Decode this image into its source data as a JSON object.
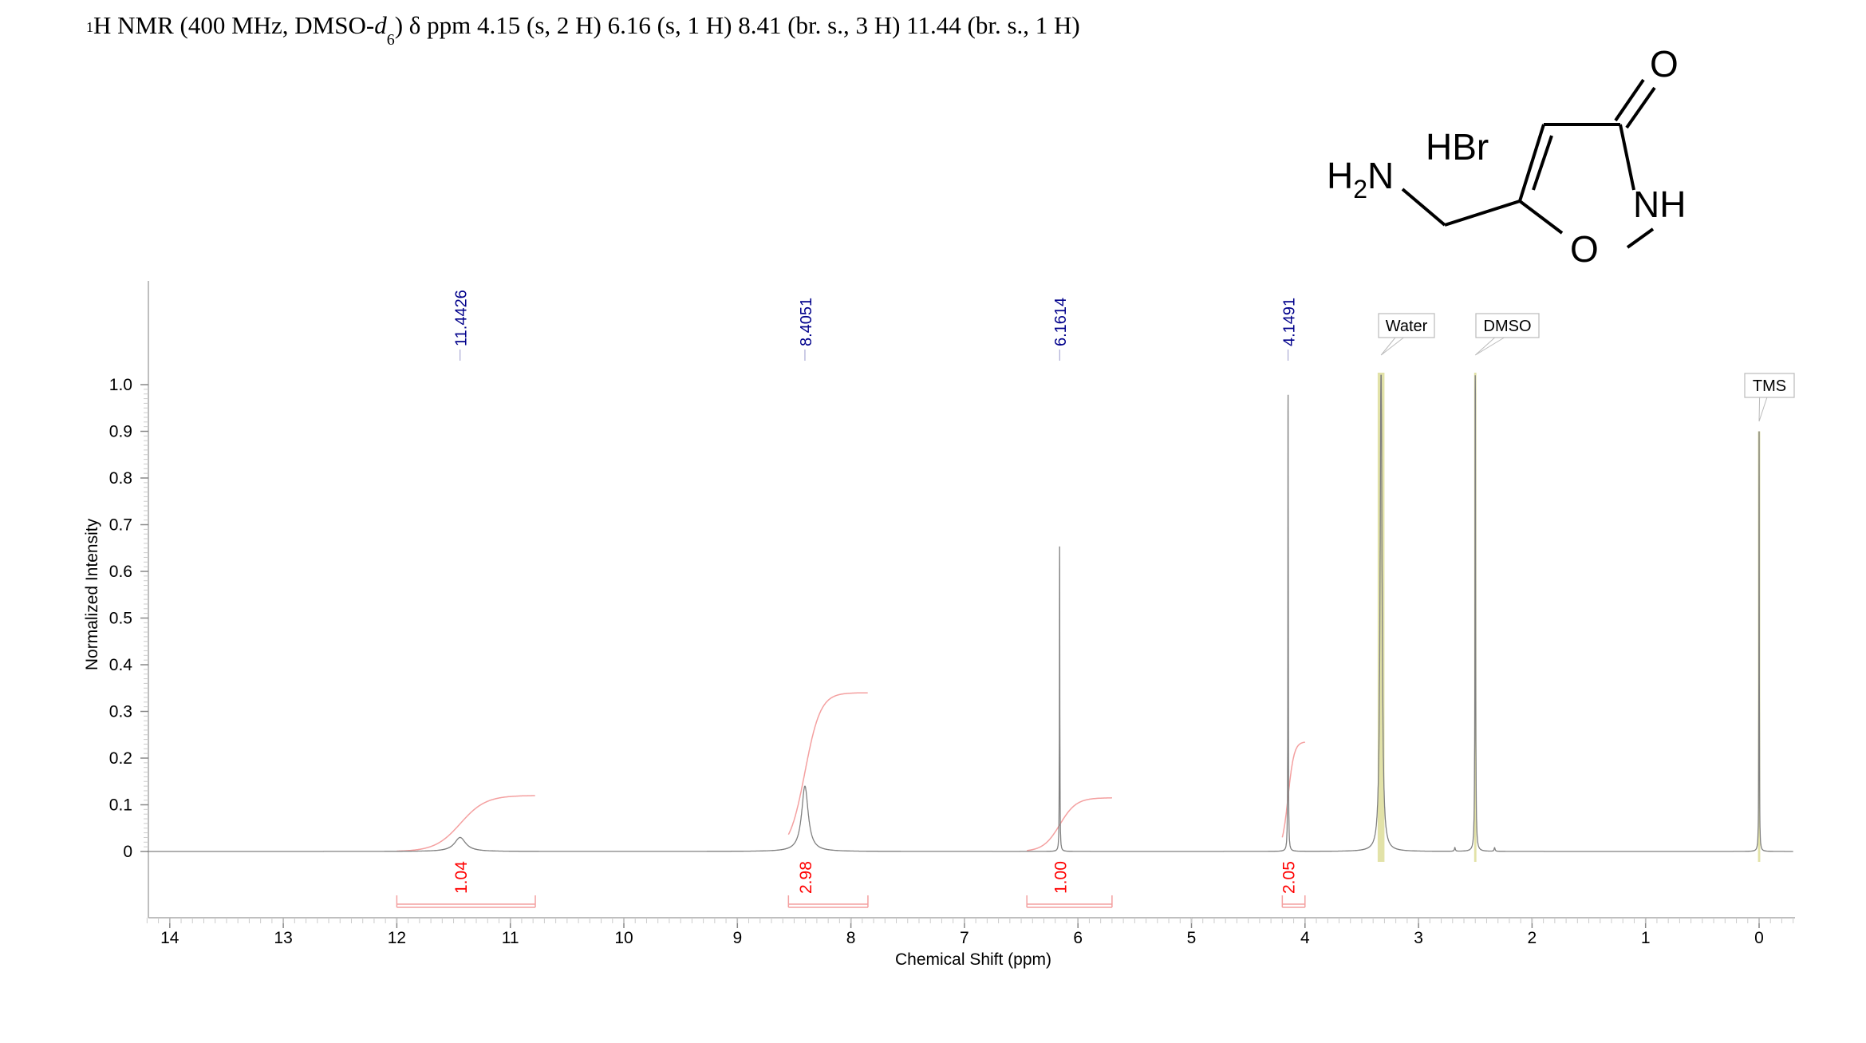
{
  "title": {
    "sup": "1",
    "pre": "H NMR (400 MHz, DMSO-",
    "italic": "d",
    "sub": "6",
    "post": ") δ ppm 4.15 (s, 2 H) 6.16 (s, 1 H) 8.41 (br. s., 3 H) 11.44 (br. s., 1 H)"
  },
  "structure": {
    "salt": "HBr",
    "amine": "H",
    "amine_sub": "2",
    "amine_n": "N",
    "nh": "NH",
    "ring_o": "O",
    "carbonyl_o": "O"
  },
  "chart_data": {
    "type": "line",
    "xlabel": "Chemical Shift (ppm)",
    "ylabel": "Normalized Intensity",
    "xlim": [
      14.2,
      -0.3
    ],
    "ylim": [
      0,
      1.0
    ],
    "x_reversed": true,
    "xticks": [
      "14",
      "13",
      "12",
      "11",
      "10",
      "9",
      "8",
      "7",
      "6",
      "5",
      "4",
      "3",
      "2",
      "1",
      "0"
    ],
    "yticks": [
      "0",
      "0.1",
      "0.2",
      "0.3",
      "0.4",
      "0.5",
      "0.6",
      "0.7",
      "0.8",
      "0.9",
      "1.0"
    ],
    "peaks": [
      {
        "ppm": 11.4426,
        "label": "11.4426",
        "height": 0.03,
        "hwhm": 0.06
      },
      {
        "ppm": 8.4051,
        "label": "8.4051",
        "height": 0.14,
        "hwhm": 0.035
      },
      {
        "ppm": 6.1614,
        "label": "6.1614",
        "height": 0.66,
        "hwhm": 0.002
      },
      {
        "ppm": 4.1491,
        "label": "4.1491",
        "height": 1.0,
        "hwhm": 0.002
      }
    ],
    "solvent_peaks": [
      {
        "ppm": 3.33,
        "label": "Water",
        "height": 1.05,
        "hwhm": 0.01,
        "band": [
          3.3,
          3.36
        ]
      },
      {
        "ppm": 2.5,
        "label": "DMSO",
        "height": 1.05,
        "hwhm": 0.003,
        "band": [
          2.49,
          2.51
        ]
      },
      {
        "ppm": 0.0,
        "label": "TMS",
        "height": 0.9,
        "hwhm": 0.002,
        "band": [
          -0.01,
          0.01
        ]
      }
    ],
    "minor_peaks": [
      {
        "ppm": 2.68,
        "height": 0.008,
        "hwhm": 0.005
      },
      {
        "ppm": 2.33,
        "height": 0.008,
        "hwhm": 0.005
      }
    ],
    "integrals": [
      {
        "value": "1.04",
        "from": 12.0,
        "to": 10.78,
        "center": 11.44,
        "level": 0.12
      },
      {
        "value": "2.98",
        "from": 8.55,
        "to": 7.85,
        "center": 8.405,
        "level": 0.34
      },
      {
        "value": "1.00",
        "from": 6.45,
        "to": 5.7,
        "center": 6.16,
        "level": 0.115
      },
      {
        "value": "2.05",
        "from": 4.2,
        "to": 4.0,
        "center": 4.149,
        "level": 0.235
      }
    ],
    "colors": {
      "spectrum": "#808080",
      "peak_label": "#00008b",
      "integral": "#ff0000",
      "integral_curve": "#f4a0a0",
      "solvent_band": "#e2e2a8"
    }
  }
}
